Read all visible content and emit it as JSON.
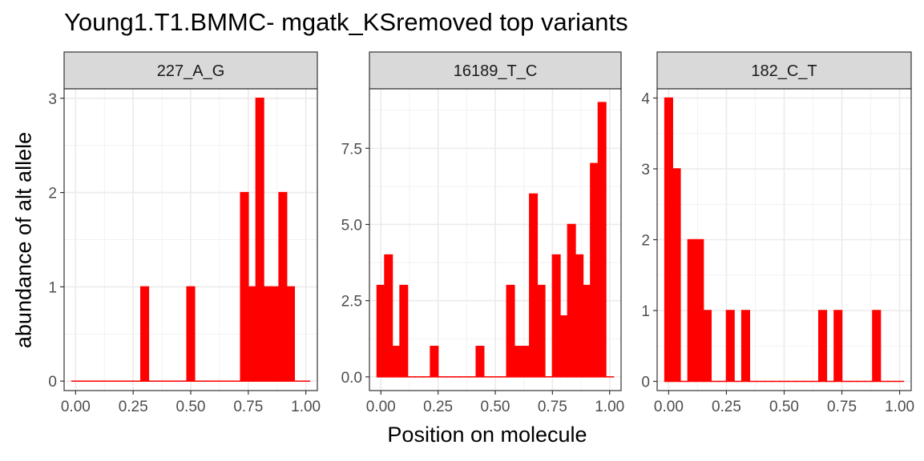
{
  "chart_data": {
    "type": "bar",
    "title": "Young1.T1.BMMC- mgatk_KSremoved top variants",
    "xlabel": "Position on molecule",
    "ylabel": "abundance of alt allele",
    "bar_color": "#ff0000",
    "grid": true,
    "x_ticks": [
      "0.00",
      "0.25",
      "0.50",
      "0.75",
      "1.00"
    ],
    "xlim": [
      -0.05,
      1.05
    ],
    "bin_width": 0.03333,
    "panels": [
      {
        "name": "227_A_G",
        "ylim": [
          -0.1,
          3.1
        ],
        "y_ticks": [
          0,
          1,
          2,
          3
        ],
        "y_tick_labels": [
          "0",
          "1",
          "2",
          "3"
        ],
        "x": [
          0.0,
          0.0333,
          0.0667,
          0.1,
          0.1333,
          0.1667,
          0.2,
          0.2333,
          0.2667,
          0.3,
          0.3333,
          0.3667,
          0.4,
          0.4333,
          0.4667,
          0.5,
          0.5333,
          0.5667,
          0.6,
          0.6333,
          0.6667,
          0.7,
          0.7333,
          0.7667,
          0.8,
          0.8333,
          0.8667,
          0.9,
          0.9333,
          0.9667,
          1.0
        ],
        "values": [
          0,
          0,
          0,
          0,
          0,
          0,
          0,
          0,
          0,
          1,
          0,
          0,
          0,
          0,
          0,
          1,
          0,
          0,
          0,
          0,
          0,
          0,
          2,
          1,
          3,
          1,
          1,
          2,
          1,
          0,
          0
        ]
      },
      {
        "name": "16189_T_C",
        "ylim": [
          -0.45,
          9.45
        ],
        "y_ticks": [
          0,
          2.5,
          5,
          7.5
        ],
        "y_tick_labels": [
          "0.0",
          "2.5",
          "5.0",
          "7.5"
        ],
        "x": [
          0.0,
          0.0333,
          0.0667,
          0.1,
          0.1333,
          0.1667,
          0.2,
          0.2333,
          0.2667,
          0.3,
          0.3333,
          0.3667,
          0.4,
          0.4333,
          0.4667,
          0.5,
          0.5333,
          0.5667,
          0.6,
          0.6333,
          0.6667,
          0.7,
          0.7333,
          0.7667,
          0.8,
          0.8333,
          0.8667,
          0.9,
          0.9333,
          0.9667,
          1.0
        ],
        "values": [
          3,
          4,
          1,
          3,
          0,
          0,
          0,
          1,
          0,
          0,
          0,
          0,
          0,
          1,
          0,
          0,
          0,
          3,
          1,
          1,
          6,
          3,
          0,
          4,
          2,
          5,
          4,
          3,
          7,
          9,
          0
        ]
      },
      {
        "name": "182_C_T",
        "ylim": [
          -0.13,
          4.13
        ],
        "y_ticks": [
          0,
          1,
          2,
          3,
          4
        ],
        "y_tick_labels": [
          "0",
          "1",
          "2",
          "3",
          "4"
        ],
        "x": [
          0.0,
          0.0333,
          0.0667,
          0.1,
          0.1333,
          0.1667,
          0.2,
          0.2333,
          0.2667,
          0.3,
          0.3333,
          0.3667,
          0.4,
          0.4333,
          0.4667,
          0.5,
          0.5333,
          0.5667,
          0.6,
          0.6333,
          0.6667,
          0.7,
          0.7333,
          0.7667,
          0.8,
          0.8333,
          0.8667,
          0.9,
          0.9333,
          0.9667,
          1.0
        ],
        "values": [
          4,
          3,
          0,
          2,
          2,
          1,
          0,
          0,
          1,
          0,
          1,
          0,
          0,
          0,
          0,
          0,
          0,
          0,
          0,
          0,
          1,
          0,
          1,
          0,
          0,
          0,
          0,
          1,
          0,
          0,
          0
        ]
      }
    ]
  }
}
